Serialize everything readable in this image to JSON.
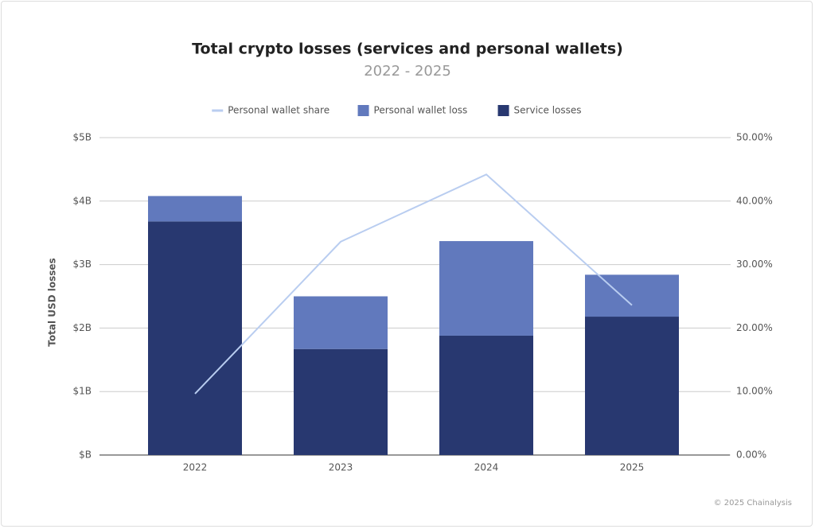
{
  "chart_data": {
    "type": "bar",
    "stacked": true,
    "title": "Total crypto losses (services and personal wallets)",
    "subtitle": "2022 - 2025",
    "ylabel": "Total USD losses",
    "categories": [
      "2022",
      "2023",
      "2024",
      "2025"
    ],
    "series": [
      {
        "name": "Service losses",
        "type": "bar",
        "color": "#283870",
        "values": [
          3.68,
          1.67,
          1.88,
          2.18
        ]
      },
      {
        "name": "Personal wallet loss",
        "type": "bar",
        "color": "#6179bd",
        "values": [
          0.4,
          0.83,
          1.49,
          0.66
        ]
      },
      {
        "name": "Personal wallet share",
        "type": "line",
        "axis": "y2",
        "color": "#b9cdf0",
        "values": [
          9.65,
          33.6,
          44.2,
          23.6
        ]
      }
    ],
    "ylim": [
      0,
      5
    ],
    "yticks": [
      {
        "value": 0,
        "label": "$B"
      },
      {
        "value": 1,
        "label": "$1B"
      },
      {
        "value": 2,
        "label": "$2B"
      },
      {
        "value": 3,
        "label": "$3B"
      },
      {
        "value": 4,
        "label": "$4B"
      },
      {
        "value": 5,
        "label": "$5B"
      }
    ],
    "y2lim": [
      0,
      50
    ],
    "y2ticks": [
      {
        "value": 0,
        "label": "0.00%"
      },
      {
        "value": 10,
        "label": "10.00%"
      },
      {
        "value": 20,
        "label": "20.00%"
      },
      {
        "value": 30,
        "label": "30.00%"
      },
      {
        "value": 40,
        "label": "40.00%"
      },
      {
        "value": 50,
        "label": "50.00%"
      }
    ],
    "grid": true,
    "legend": "top",
    "credit": "© 2025 Chainalysis"
  }
}
